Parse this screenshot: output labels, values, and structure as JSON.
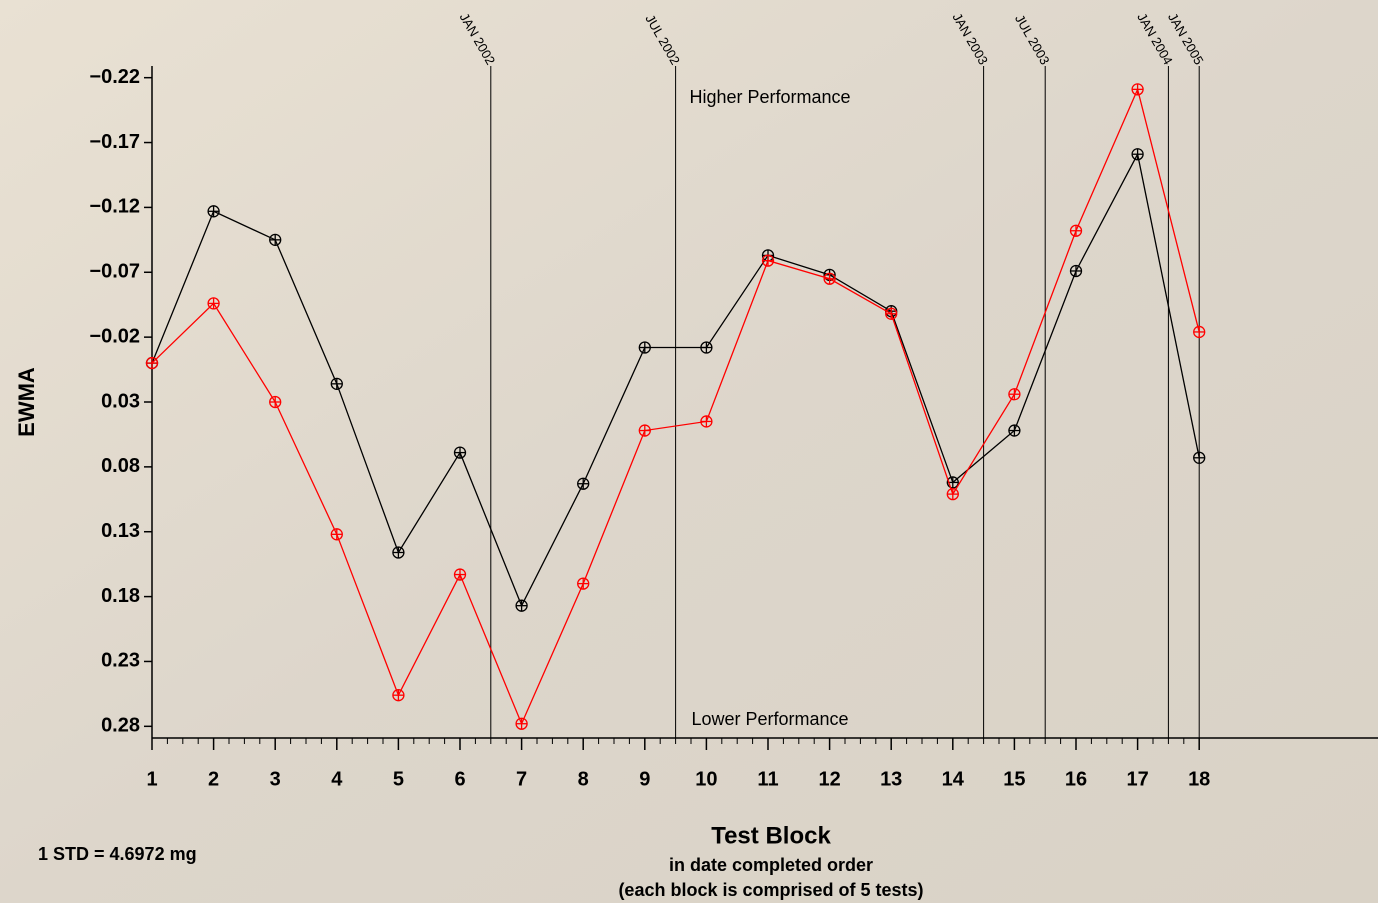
{
  "chart_data": {
    "type": "line",
    "categories": [
      "1",
      "2",
      "3",
      "4",
      "5",
      "6",
      "7",
      "8",
      "9",
      "10",
      "11",
      "12",
      "13",
      "14",
      "15",
      "16",
      "17",
      "18"
    ],
    "series": [
      {
        "color": "#000000",
        "values": [
          0.0,
          -0.117,
          -0.095,
          0.016,
          0.146,
          0.069,
          0.187,
          0.093,
          -0.012,
          -0.012,
          -0.083,
          -0.068,
          -0.04,
          0.092,
          0.052,
          -0.071,
          -0.161,
          0.073
        ]
      },
      {
        "color": "#ff0000",
        "values": [
          0.0,
          -0.046,
          0.03,
          0.132,
          0.256,
          0.163,
          0.278,
          0.17,
          0.052,
          0.045,
          -0.079,
          -0.065,
          -0.038,
          0.101,
          0.024,
          -0.102,
          -0.211,
          -0.024
        ]
      }
    ],
    "ylim": [
      0.289,
      -0.229
    ],
    "yticks": [
      {
        "value": -0.22,
        "label": "−0.22"
      },
      {
        "value": -0.17,
        "label": "−0.17"
      },
      {
        "value": -0.12,
        "label": "−0.12"
      },
      {
        "value": -0.07,
        "label": "−0.07"
      },
      {
        "value": -0.02,
        "label": "−0.02"
      },
      0.03,
      0.08,
      0.13,
      0.18,
      0.23,
      0.28
    ],
    "ylabel": "EWMA",
    "xlabel": "Test Block",
    "xlabel_sub": [
      "in date completed order",
      "(each block is comprised of 5 tests)"
    ],
    "top_annotation": "Higher Performance",
    "bottom_annotation": "Lower Performance",
    "note": "1 STD  =  4.6972 mg",
    "date_lines": [
      {
        "x": 6.5,
        "label": "JAN 2002"
      },
      {
        "x": 9.5,
        "label": "JUL 2002"
      },
      {
        "x": 14.5,
        "label": "JAN 2003"
      },
      {
        "x": 15.5,
        "label": "JUL 2003"
      },
      {
        "x": 17.5,
        "label": "JAN 2004"
      },
      {
        "x": 18,
        "label": "JAN 2005"
      }
    ]
  }
}
